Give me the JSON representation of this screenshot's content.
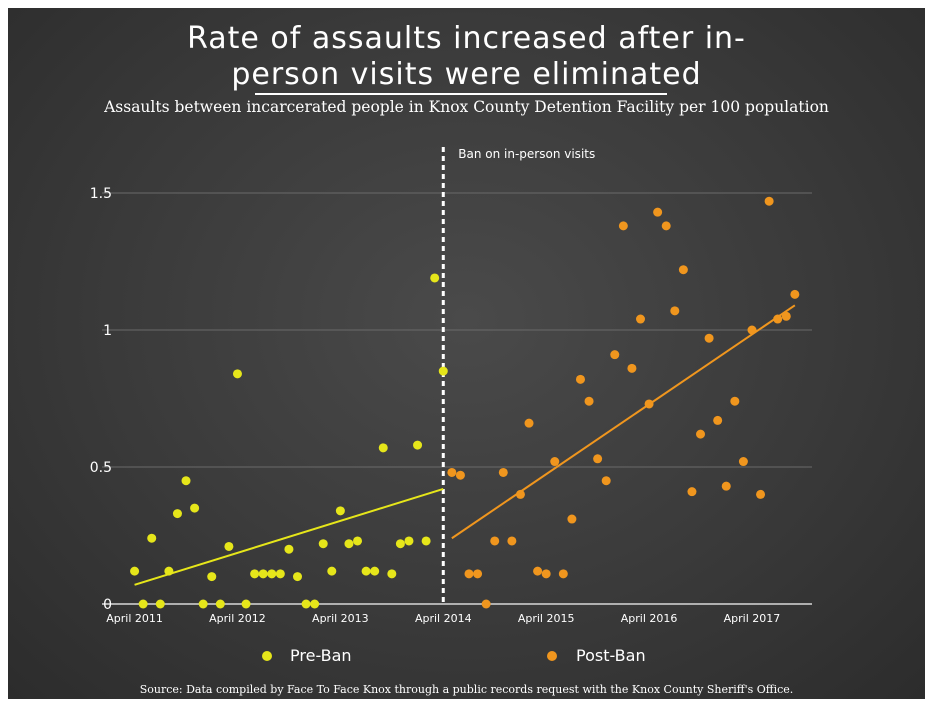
{
  "title_line1": "Rate of assaults increased after in-",
  "title_line2": "person visits were eliminated",
  "subtitle": "Assaults between incarcerated people in Knox County Detention Facility per 100 population",
  "source": "Source: Data compiled by Face To Face Knox through a public records request with the Knox County Sheriff's Office.",
  "colors": {
    "pre": "#e6e61a",
    "post": "#f0961e",
    "background": "#3a3a3a",
    "text": "#ffffff",
    "grid": "#6a6a6a"
  },
  "chart_data": {
    "type": "scatter",
    "title": "Rate of assaults increased after in-person visits were eliminated",
    "subtitle": "Assaults between incarcerated people in Knox County Detention Facility per 100 population",
    "xlabel": "",
    "ylabel": "",
    "xlim": [
      "2011-03",
      "2017-11"
    ],
    "ylim": [
      0,
      1.5
    ],
    "y_ticks": [
      "0",
      "0.5",
      "1",
      "1.5"
    ],
    "x_ticks": [
      {
        "label": "April 2011",
        "date": "2011-04"
      },
      {
        "label": "April 2012",
        "date": "2012-04"
      },
      {
        "label": "April 2013",
        "date": "2013-04"
      },
      {
        "label": "April 2014",
        "date": "2014-04"
      },
      {
        "label": "April 2015",
        "date": "2015-04"
      },
      {
        "label": "April 2016",
        "date": "2016-04"
      },
      {
        "label": "April 2017",
        "date": "2017-04"
      }
    ],
    "grid": "horizontal",
    "annotation": {
      "label": "Ban on in-person visits",
      "date": "2014-04"
    },
    "legend_position": "bottom",
    "series": [
      {
        "name": "Pre-Ban",
        "color": "#e6e61a",
        "points": [
          [
            "2011-04",
            0.12
          ],
          [
            "2011-05",
            0.0
          ],
          [
            "2011-06",
            0.24
          ],
          [
            "2011-07",
            0.0
          ],
          [
            "2011-08",
            0.12
          ],
          [
            "2011-09",
            0.33
          ],
          [
            "2011-10",
            0.45
          ],
          [
            "2011-11",
            0.35
          ],
          [
            "2011-12",
            0.0
          ],
          [
            "2012-01",
            0.1
          ],
          [
            "2012-02",
            0.0
          ],
          [
            "2012-03",
            0.21
          ],
          [
            "2012-04",
            0.84
          ],
          [
            "2012-05",
            0.0
          ],
          [
            "2012-06",
            0.11
          ],
          [
            "2012-07",
            0.11
          ],
          [
            "2012-08",
            0.11
          ],
          [
            "2012-09",
            0.11
          ],
          [
            "2012-10",
            0.2
          ],
          [
            "2012-11",
            0.1
          ],
          [
            "2012-12",
            0.0
          ],
          [
            "2013-01",
            0.0
          ],
          [
            "2013-02",
            0.22
          ],
          [
            "2013-03",
            0.12
          ],
          [
            "2013-04",
            0.34
          ],
          [
            "2013-05",
            0.22
          ],
          [
            "2013-06",
            0.23
          ],
          [
            "2013-07",
            0.12
          ],
          [
            "2013-08",
            0.12
          ],
          [
            "2013-09",
            0.57
          ],
          [
            "2013-10",
            0.11
          ],
          [
            "2013-11",
            0.22
          ],
          [
            "2013-12",
            0.23
          ],
          [
            "2014-01",
            0.58
          ],
          [
            "2014-02",
            0.23
          ],
          [
            "2014-03",
            1.19
          ],
          [
            "2014-04",
            0.85
          ]
        ],
        "trend": [
          [
            "2011-04",
            0.07
          ],
          [
            "2014-04",
            0.42
          ]
        ]
      },
      {
        "name": "Post-Ban",
        "color": "#f0961e",
        "points": [
          [
            "2014-05",
            0.48
          ],
          [
            "2014-06",
            0.47
          ],
          [
            "2014-07",
            0.11
          ],
          [
            "2014-08",
            0.11
          ],
          [
            "2014-09",
            0.0
          ],
          [
            "2014-10",
            0.23
          ],
          [
            "2014-11",
            0.48
          ],
          [
            "2014-12",
            0.23
          ],
          [
            "2015-01",
            0.4
          ],
          [
            "2015-02",
            0.66
          ],
          [
            "2015-03",
            0.12
          ],
          [
            "2015-04",
            0.11
          ],
          [
            "2015-05",
            0.52
          ],
          [
            "2015-06",
            0.11
          ],
          [
            "2015-07",
            0.31
          ],
          [
            "2015-08",
            0.82
          ],
          [
            "2015-09",
            0.74
          ],
          [
            "2015-10",
            0.53
          ],
          [
            "2015-11",
            0.45
          ],
          [
            "2015-12",
            0.91
          ],
          [
            "2016-01",
            1.38
          ],
          [
            "2016-02",
            0.86
          ],
          [
            "2016-03",
            1.04
          ],
          [
            "2016-04",
            0.73
          ],
          [
            "2016-05",
            1.43
          ],
          [
            "2016-06",
            1.38
          ],
          [
            "2016-07",
            1.07
          ],
          [
            "2016-08",
            1.22
          ],
          [
            "2016-09",
            0.41
          ],
          [
            "2016-10",
            0.62
          ],
          [
            "2016-11",
            0.97
          ],
          [
            "2016-12",
            0.67
          ],
          [
            "2017-01",
            0.43
          ],
          [
            "2017-02",
            0.74
          ],
          [
            "2017-03",
            0.52
          ],
          [
            "2017-04",
            1.0
          ],
          [
            "2017-05",
            0.4
          ],
          [
            "2017-06",
            1.47
          ],
          [
            "2017-07",
            1.04
          ],
          [
            "2017-08",
            1.05
          ],
          [
            "2017-09",
            1.13
          ]
        ],
        "trend": [
          [
            "2014-05",
            0.24
          ],
          [
            "2017-09",
            1.09
          ]
        ]
      }
    ]
  }
}
